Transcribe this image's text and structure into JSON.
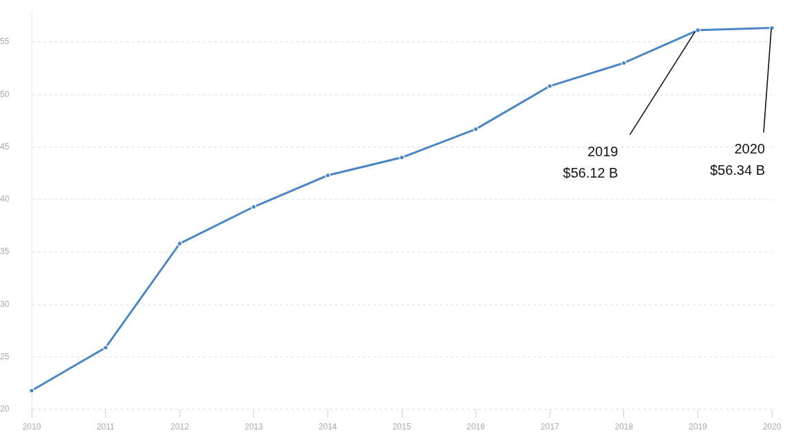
{
  "chart_data": {
    "type": "line",
    "categories": [
      "2010",
      "2011",
      "2012",
      "2013",
      "2014",
      "2015",
      "2016",
      "2017",
      "2018",
      "2019",
      "2020"
    ],
    "values": [
      21.8,
      25.9,
      35.8,
      39.3,
      42.3,
      44.0,
      46.7,
      50.8,
      53.0,
      56.12,
      56.34
    ],
    "color": "#4a86c5",
    "ylim": [
      20,
      58
    ],
    "yticks": [
      20,
      25,
      30,
      35,
      40,
      45,
      50,
      55
    ],
    "grid": "y",
    "legend": false,
    "marker": "circle",
    "line_style": "solid",
    "annotations": [
      {
        "text": "2019\n$56.12 B",
        "x": "2019",
        "y": 56.12
      },
      {
        "text": "2020\n$56.34 B",
        "x": "2020",
        "y": 56.34
      }
    ]
  }
}
